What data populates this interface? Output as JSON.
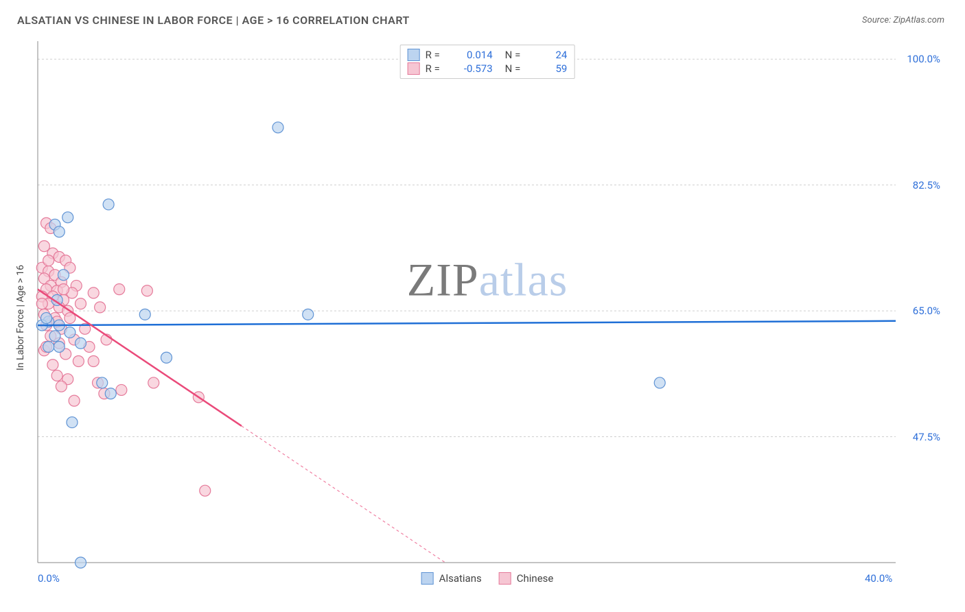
{
  "header": {
    "title": "ALSATIAN VS CHINESE IN LABOR FORCE | AGE > 16 CORRELATION CHART",
    "source_label": "Source:",
    "source_value": "ZipAtlas.com"
  },
  "chart": {
    "type": "scatter",
    "watermark_a": "ZIP",
    "watermark_b": "atlas",
    "ylabel": "In Labor Force | Age > 16",
    "background_color": "#ffffff",
    "grid_color": "#cfcfcf",
    "axis_color": "#888888",
    "xlim": [
      0,
      40
    ],
    "ylim": [
      30,
      102.5
    ],
    "yticks": [
      {
        "v": 100.0,
        "label": "100.0%"
      },
      {
        "v": 82.5,
        "label": "82.5%"
      },
      {
        "v": 65.0,
        "label": "65.0%"
      },
      {
        "v": 47.5,
        "label": "47.5%"
      }
    ],
    "xticks": [
      {
        "v": 0,
        "label": "0.0%"
      },
      {
        "v": 40,
        "label": "40.0%"
      }
    ],
    "legend_top": [
      {
        "color_fill": "#bcd4f0",
        "color_border": "#5f93d4",
        "r_label": "R =",
        "r_val": "0.014",
        "n_label": "N =",
        "n_val": "24"
      },
      {
        "color_fill": "#f6c6d3",
        "color_border": "#e57a9a",
        "r_label": "R =",
        "r_val": "-0.573",
        "n_label": "N =",
        "n_val": "59"
      }
    ],
    "legend_bottom": [
      {
        "color_fill": "#bcd4f0",
        "color_border": "#5f93d4",
        "label": "Alsatians"
      },
      {
        "color_fill": "#f6c6d3",
        "color_border": "#e57a9a",
        "label": "Chinese"
      }
    ],
    "series": [
      {
        "name": "Alsatians",
        "marker_color": "#bcd4f0",
        "marker_border": "#5f93d4",
        "marker_radius": 8,
        "line_color": "#1f6fd6",
        "line_width": 2.5,
        "trend": {
          "x1": 0,
          "y1": 63.0,
          "x2": 40,
          "y2": 63.6,
          "solid_until_x": 40
        },
        "points": [
          [
            11.2,
            90.5
          ],
          [
            3.3,
            79.8
          ],
          [
            1.4,
            78.0
          ],
          [
            0.8,
            77.0
          ],
          [
            1.0,
            76.0
          ],
          [
            1.2,
            70.0
          ],
          [
            5.0,
            64.5
          ],
          [
            12.6,
            64.5
          ],
          [
            0.5,
            63.5
          ],
          [
            1.0,
            63.0
          ],
          [
            0.2,
            63.0
          ],
          [
            1.5,
            62.0
          ],
          [
            0.8,
            61.5
          ],
          [
            1.0,
            60.0
          ],
          [
            2.0,
            60.5
          ],
          [
            6.0,
            58.5
          ],
          [
            3.0,
            55.0
          ],
          [
            3.4,
            53.5
          ],
          [
            1.6,
            49.5
          ],
          [
            0.5,
            60.0
          ],
          [
            29.0,
            55.0
          ],
          [
            2.0,
            30.0
          ],
          [
            0.9,
            66.5
          ],
          [
            0.4,
            64.0
          ]
        ]
      },
      {
        "name": "Chinese",
        "marker_color": "#f6c6d3",
        "marker_border": "#e57a9a",
        "marker_radius": 8,
        "line_color": "#ea4a7a",
        "line_width": 2.5,
        "trend": {
          "x1": 0,
          "y1": 68.0,
          "x2": 19,
          "y2": 30.0,
          "solid_until_x": 9.5
        },
        "points": [
          [
            0.4,
            77.2
          ],
          [
            0.6,
            76.5
          ],
          [
            0.3,
            74.0
          ],
          [
            0.7,
            73.0
          ],
          [
            1.0,
            72.5
          ],
          [
            1.3,
            72.0
          ],
          [
            0.2,
            71.0
          ],
          [
            1.5,
            71.0
          ],
          [
            0.5,
            70.5
          ],
          [
            0.8,
            70.0
          ],
          [
            0.3,
            69.5
          ],
          [
            1.1,
            69.0
          ],
          [
            0.6,
            68.5
          ],
          [
            1.8,
            68.5
          ],
          [
            0.4,
            68.0
          ],
          [
            0.9,
            67.8
          ],
          [
            1.6,
            67.5
          ],
          [
            2.6,
            67.5
          ],
          [
            3.8,
            68.0
          ],
          [
            5.1,
            67.8
          ],
          [
            0.2,
            67.0
          ],
          [
            0.7,
            67.0
          ],
          [
            1.2,
            66.5
          ],
          [
            0.5,
            66.0
          ],
          [
            1.0,
            65.5
          ],
          [
            1.4,
            65.0
          ],
          [
            2.9,
            65.5
          ],
          [
            0.3,
            64.5
          ],
          [
            0.8,
            64.0
          ],
          [
            1.5,
            64.0
          ],
          [
            0.4,
            63.0
          ],
          [
            1.1,
            62.5
          ],
          [
            2.2,
            62.5
          ],
          [
            0.6,
            61.5
          ],
          [
            1.7,
            61.0
          ],
          [
            1.0,
            60.5
          ],
          [
            3.2,
            61.0
          ],
          [
            2.4,
            60.0
          ],
          [
            0.3,
            59.5
          ],
          [
            1.3,
            59.0
          ],
          [
            1.9,
            58.0
          ],
          [
            0.7,
            57.5
          ],
          [
            2.6,
            58.0
          ],
          [
            0.9,
            56.0
          ],
          [
            1.4,
            55.5
          ],
          [
            1.1,
            54.5
          ],
          [
            2.8,
            55.0
          ],
          [
            5.4,
            55.0
          ],
          [
            3.9,
            54.0
          ],
          [
            7.5,
            53.0
          ],
          [
            1.7,
            52.5
          ],
          [
            3.1,
            53.5
          ],
          [
            0.5,
            72.0
          ],
          [
            0.2,
            66.0
          ],
          [
            0.9,
            63.5
          ],
          [
            1.2,
            68.0
          ],
          [
            2.0,
            66.0
          ],
          [
            0.4,
            60.0
          ],
          [
            7.8,
            40.0
          ]
        ]
      }
    ]
  }
}
